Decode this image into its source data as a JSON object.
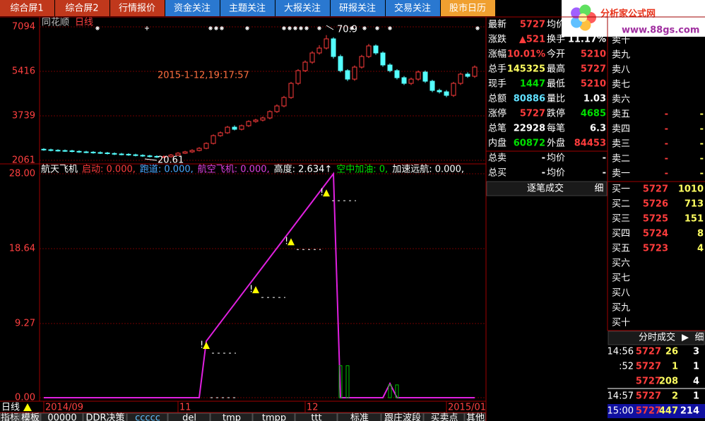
{
  "tabs": [
    "综合屏1",
    "综合屏2",
    "行情报价",
    "资金关注",
    "主题关注",
    "大报关注",
    "研报关注",
    "交易关注",
    "股市日历"
  ],
  "logo": {
    "title": "分析家公式网",
    "url": "www.88gs.com"
  },
  "chart_data": [
    {
      "type": "candlestick",
      "title": "同花顺",
      "period": "日线",
      "annotation": "2015-1-12,19:17:57",
      "low_label": "20.61",
      "high_label": "70.9",
      "up_color": "#ff3c3c",
      "down_color": "#54ffff",
      "ylim": [
        2061,
        7094
      ],
      "yticks": [
        2061,
        3739,
        5416,
        7094
      ],
      "ohlc": [
        [
          2480,
          2460,
          2520,
          2420
        ],
        [
          2460,
          2440,
          2500,
          2400
        ],
        [
          2440,
          2430,
          2480,
          2390
        ],
        [
          2430,
          2420,
          2470,
          2380
        ],
        [
          2420,
          2400,
          2460,
          2360
        ],
        [
          2400,
          2380,
          2440,
          2340
        ],
        [
          2380,
          2370,
          2420,
          2330
        ],
        [
          2370,
          2354,
          2410,
          2310
        ],
        [
          2354,
          2340,
          2400,
          2300
        ],
        [
          2340,
          2320,
          2380,
          2280
        ],
        [
          2320,
          2300,
          2360,
          2260
        ],
        [
          2300,
          2290,
          2340,
          2250
        ],
        [
          2290,
          2270,
          2330,
          2230
        ],
        [
          2270,
          2250,
          2310,
          2210
        ],
        [
          2250,
          2230,
          2290,
          2190
        ],
        [
          2230,
          2210,
          2270,
          2170
        ],
        [
          2210,
          2194,
          2250,
          2150
        ],
        [
          2194,
          2200,
          2250,
          2150
        ],
        [
          2200,
          2260,
          2300,
          2160
        ],
        [
          2260,
          2330,
          2370,
          2230
        ],
        [
          2330,
          2381,
          2420,
          2300
        ],
        [
          2381,
          2434,
          2480,
          2340
        ],
        [
          2434,
          2514,
          2560,
          2400
        ],
        [
          2514,
          2700,
          2740,
          2480
        ],
        [
          2700,
          2993,
          3040,
          2660
        ],
        [
          2993,
          3100,
          3150,
          2950
        ],
        [
          3100,
          3312,
          3360,
          3060
        ],
        [
          3312,
          3233,
          3380,
          3190
        ],
        [
          3233,
          3366,
          3410,
          3190
        ],
        [
          3366,
          3526,
          3570,
          3320
        ],
        [
          3526,
          3579,
          3630,
          3480
        ],
        [
          3579,
          3659,
          3710,
          3530
        ],
        [
          3659,
          3900,
          3950,
          3610
        ],
        [
          3900,
          4112,
          4170,
          3850
        ],
        [
          4112,
          4431,
          4490,
          4060
        ],
        [
          4431,
          4964,
          5020,
          4380
        ],
        [
          4964,
          5443,
          5500,
          4900
        ],
        [
          5443,
          5763,
          5830,
          5390
        ],
        [
          5763,
          6109,
          6180,
          5700
        ],
        [
          6109,
          6295,
          6400,
          6050
        ],
        [
          6295,
          6641,
          6780,
          6240
        ],
        [
          6641,
          5976,
          6700,
          5900
        ],
        [
          5976,
          5443,
          6050,
          5380
        ],
        [
          5443,
          5123,
          5500,
          5050
        ],
        [
          5123,
          5576,
          5640,
          5060
        ],
        [
          5576,
          5976,
          6040,
          5520
        ],
        [
          5976,
          6375,
          6450,
          5920
        ],
        [
          6375,
          6109,
          6430,
          6040
        ],
        [
          6109,
          5656,
          6170,
          5590
        ],
        [
          5656,
          5443,
          5720,
          5380
        ],
        [
          5443,
          5177,
          5500,
          5110
        ],
        [
          5177,
          4964,
          5240,
          4900
        ],
        [
          4964,
          5123,
          5180,
          4900
        ],
        [
          5123,
          5390,
          5450,
          5060
        ],
        [
          5390,
          5044,
          5450,
          4980
        ],
        [
          5044,
          4697,
          5100,
          4630
        ],
        [
          4697,
          4644,
          4760,
          4580
        ],
        [
          4644,
          4511,
          4710,
          4440
        ],
        [
          4511,
          4964,
          5020,
          4450
        ],
        [
          4964,
          5310,
          5370,
          4900
        ],
        [
          5310,
          5230,
          5380,
          5170
        ],
        [
          5230,
          5576,
          5640,
          5170
        ]
      ]
    },
    {
      "type": "line",
      "title": "航天飞机",
      "legend": [
        {
          "text": "启动: 0.000,",
          "color": "#ff3c3c"
        },
        {
          "text": "跑道: 0.000,",
          "color": "#4aa8ff"
        },
        {
          "text": "航空飞机: 0.000,",
          "color": "#e040e0"
        },
        {
          "text": "高度: 2.634↑",
          "color": "#ffffff"
        },
        {
          "text": "空中加油: 0,",
          "color": "#00e000"
        },
        {
          "text": "加速远航: 0.000,",
          "color": "#ffffff"
        }
      ],
      "period": "日线",
      "ylim": [
        0,
        28
      ],
      "yticks": [
        {
          "value": 0,
          "label": "0.00"
        },
        9.27,
        18.64,
        {
          "value": 28,
          "label": "28.00"
        }
      ],
      "categories": [
        "2014/09",
        null,
        null,
        null,
        null,
        null,
        null,
        null,
        null,
        null,
        null,
        null,
        null,
        null,
        null,
        null,
        null,
        null,
        null,
        "11",
        null,
        null,
        null,
        null,
        null,
        null,
        null,
        null,
        null,
        null,
        null,
        null,
        null,
        null,
        null,
        null,
        null,
        "12",
        null,
        null,
        null,
        null,
        null,
        null,
        null,
        null,
        null,
        null,
        null,
        null,
        null,
        null,
        null,
        null,
        null,
        null,
        null,
        "2015/01",
        null,
        null,
        null,
        null
      ],
      "series": [
        {
          "color": "#e020e0",
          "values": [
            0,
            0,
            0,
            0,
            0,
            0,
            0,
            0,
            0,
            0,
            0,
            0,
            0,
            0,
            0,
            0,
            0,
            0,
            0,
            0,
            0,
            0,
            0,
            7.07,
            8.23,
            9.4,
            10.56,
            11.72,
            12.89,
            14.05,
            15.21,
            16.37,
            17.54,
            18.7,
            19.86,
            21.02,
            22.19,
            23.35,
            24.51,
            25.68,
            26.84,
            28.0,
            0,
            0,
            0,
            0,
            0,
            0,
            0,
            1.77,
            0,
            0,
            0,
            0,
            0,
            0,
            0,
            0,
            0,
            0,
            0,
            0
          ]
        },
        {
          "color": "#00c000",
          "values": [
            null,
            null,
            null,
            null,
            null,
            null,
            null,
            null,
            null,
            null,
            null,
            null,
            null,
            null,
            null,
            null,
            null,
            null,
            null,
            null,
            null,
            null,
            null,
            null,
            null,
            null,
            null,
            null,
            null,
            null,
            null,
            null,
            null,
            null,
            null,
            null,
            null,
            null,
            null,
            null,
            null,
            null,
            4.0,
            4.0,
            null,
            null,
            null,
            null,
            null,
            1.6,
            1.6,
            null,
            null,
            null,
            null,
            null,
            null,
            null,
            null,
            null,
            null,
            null
          ]
        }
      ],
      "signals": [
        {
          "label": "!",
          "index": 23,
          "value": 6.54
        },
        {
          "label": "!",
          "index": 30,
          "value": 13.5
        },
        {
          "label": "!",
          "index": 35,
          "value": 19.5
        },
        {
          "label": "!",
          "index": 40,
          "value": 25.6
        }
      ],
      "signal_color": "#ffff00"
    }
  ],
  "quote": {
    "rows": [
      [
        "最新",
        {
          "t": "5727",
          "c": "#ff3c3c"
        },
        "均价"
      ],
      [
        "涨跌",
        {
          "t": "▲521",
          "c": "#ff3c3c"
        },
        "换手",
        {
          "t": "11.17%",
          "c": "#ffffff"
        }
      ],
      [
        "涨幅",
        {
          "t": "10.01%",
          "c": "#ff3c3c"
        },
        "今开",
        {
          "t": "5210",
          "c": "#ff3c3c"
        }
      ],
      [
        "总手",
        {
          "t": "145325",
          "c": "#ffff60"
        },
        "最高",
        {
          "t": "5727",
          "c": "#ff3c3c"
        }
      ],
      [
        "现手",
        {
          "t": "1447",
          "c": "#00e000"
        },
        "最低",
        {
          "t": "5210",
          "c": "#ff3c3c"
        }
      ],
      [
        "总额",
        {
          "t": "80886",
          "c": "#60e0ff"
        },
        "量比",
        {
          "t": "1.03",
          "c": "#ffffff"
        }
      ],
      [
        "涨停",
        {
          "t": "5727",
          "c": "#ff3c3c"
        },
        "跌停",
        {
          "t": "4685",
          "c": "#00e000"
        }
      ],
      [
        "总笔",
        {
          "t": "22928",
          "c": "#ffffff"
        },
        "每笔",
        {
          "t": "6.3",
          "c": "#ffffff"
        }
      ],
      [
        "内盘",
        {
          "t": "60872",
          "c": "#00e000"
        },
        "外盘",
        {
          "t": "84453",
          "c": "#ff3c3c"
        }
      ],
      [
        "总卖",
        {
          "t": "-",
          "c": "#ffffff"
        },
        "均价",
        {
          "t": "-",
          "c": "#ffffff"
        }
      ],
      [
        "总买",
        {
          "t": "-",
          "c": "#ffffff"
        },
        "均价",
        {
          "t": "-",
          "c": "#ffffff"
        }
      ]
    ],
    "trade_header": "逐笔成交",
    "trade_detail": "细"
  },
  "book": {
    "sell": [
      [
        "卖十"
      ],
      [
        "卖九"
      ],
      [
        "卖八"
      ],
      [
        "卖七"
      ],
      [
        "卖六"
      ],
      [
        "卖五",
        "-",
        "-"
      ],
      [
        "卖四",
        "-",
        "-"
      ],
      [
        "卖三",
        "-",
        "-"
      ],
      [
        "卖二",
        "-",
        "-"
      ],
      [
        "卖一",
        "-",
        "-"
      ]
    ],
    "buy": [
      [
        "买一",
        "5727",
        "1010"
      ],
      [
        "买二",
        "5726",
        "713"
      ],
      [
        "买三",
        "5725",
        "151"
      ],
      [
        "买四",
        "5724",
        "8"
      ],
      [
        "买五",
        "5723",
        "4"
      ],
      [
        "买六"
      ],
      [
        "买七"
      ],
      [
        "买八"
      ],
      [
        "买九"
      ],
      [
        "买十"
      ]
    ]
  },
  "ticks": {
    "header": "分时成交",
    "play": "▶",
    "detail": "细",
    "rows": [
      {
        "time": "14:56",
        "price": "5727",
        "vol": "26",
        "n": "3"
      },
      {
        "time": ":52",
        "price": "5727",
        "vol": "1",
        "n": "1"
      },
      {
        "price": "5727",
        "vol": "208",
        "n": "4"
      },
      {
        "time": "14:57",
        "price": "5727",
        "vol": "2",
        "n": "1"
      },
      {
        "time": "15:00",
        "price": "5727",
        "vol": "447",
        "n": "214"
      }
    ]
  },
  "bottom_buttons": [
    "指标",
    "模板",
    "00000",
    "DDR决策",
    "ccccc",
    "del",
    "tmp",
    "tmpp",
    "ttt",
    "标准",
    "跟庄波段",
    "买卖点",
    "其他"
  ]
}
